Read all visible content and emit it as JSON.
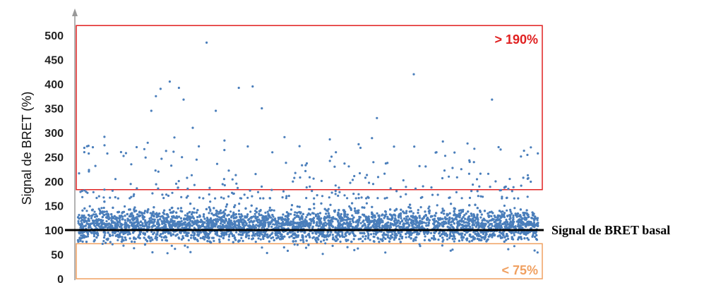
{
  "chart_data": {
    "type": "scatter",
    "title": "",
    "xlabel": "",
    "ylabel": "Signal de BRET (%)",
    "ylim": [
      0,
      520
    ],
    "yticks": [
      0,
      50,
      100,
      150,
      200,
      250,
      300,
      350,
      400,
      450,
      500
    ],
    "ytick_labels": [
      "0",
      "50",
      "100",
      "150",
      "200",
      "250",
      "300",
      "350",
      "400",
      "450",
      "500"
    ],
    "point_color": "#4a7ebb",
    "baseline": {
      "value": 100,
      "label": "Signal de BRET basal",
      "color": "#000000"
    },
    "regions": [
      {
        "name": "high",
        "label": "> 190%",
        "y_from": 183,
        "y_to": 520,
        "color": "#e02020"
      },
      {
        "name": "low",
        "label": "< 75%",
        "y_from": 0,
        "y_to": 72,
        "color": "#f0a060"
      }
    ],
    "approx_point_count": 6000,
    "main_band": {
      "y_center": 110,
      "y_spread": 30
    },
    "highlighted_outliers": [
      {
        "x": 0.73,
        "y": 420
      },
      {
        "x": 0.28,
        "y": 485
      },
      {
        "x": 0.2,
        "y": 405
      },
      {
        "x": 0.18,
        "y": 390
      },
      {
        "x": 0.22,
        "y": 392
      },
      {
        "x": 0.38,
        "y": 395
      },
      {
        "x": 0.4,
        "y": 350
      },
      {
        "x": 0.3,
        "y": 345
      },
      {
        "x": 0.9,
        "y": 368
      },
      {
        "x": 0.23,
        "y": 368
      },
      {
        "x": 0.17,
        "y": 375
      },
      {
        "x": 0.35,
        "y": 392
      },
      {
        "x": 0.65,
        "y": 330
      },
      {
        "x": 0.16,
        "y": 345
      },
      {
        "x": 0.25,
        "y": 310
      }
    ]
  }
}
